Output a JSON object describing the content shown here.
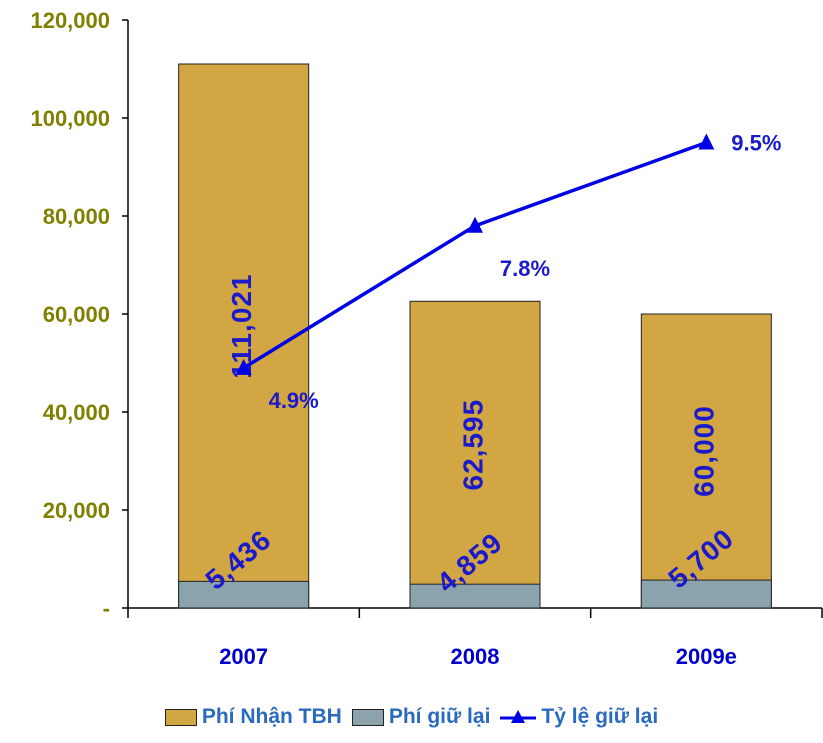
{
  "chart_data": {
    "type": "bar",
    "categories": [
      "2007",
      "2008",
      "2009e"
    ],
    "series": [
      {
        "name": "Phí Nhận TBH",
        "kind": "bar",
        "values": [
          111021,
          62595,
          60000
        ],
        "labels": [
          "111,021",
          "62,595",
          "60,000"
        ],
        "color": "#d2a642"
      },
      {
        "name": "Phí giữ lại",
        "kind": "bar",
        "values": [
          5436,
          4859,
          5700
        ],
        "labels": [
          "5,436",
          "4,859",
          "5,700"
        ],
        "color": "#8ba3ad"
      },
      {
        "name": "Tỷ lệ giữ lại",
        "kind": "line",
        "values": [
          4.9,
          7.8,
          9.5
        ],
        "labels": [
          "4.9%",
          "7.8%",
          "9.5%"
        ],
        "color": "#0000e6"
      }
    ],
    "ylim": [
      0,
      120000
    ],
    "yticks": [
      0,
      20000,
      40000,
      60000,
      80000,
      100000,
      120000
    ],
    "ytick_labels": [
      "-",
      "20,000",
      "40,000",
      "60,000",
      "80,000",
      "100,000",
      "120,000"
    ],
    "secondary_ylim": [
      0,
      12
    ],
    "grid": false,
    "legend_position": "bottom",
    "label_color": "#1a1acc",
    "ytick_color": "#808000"
  }
}
